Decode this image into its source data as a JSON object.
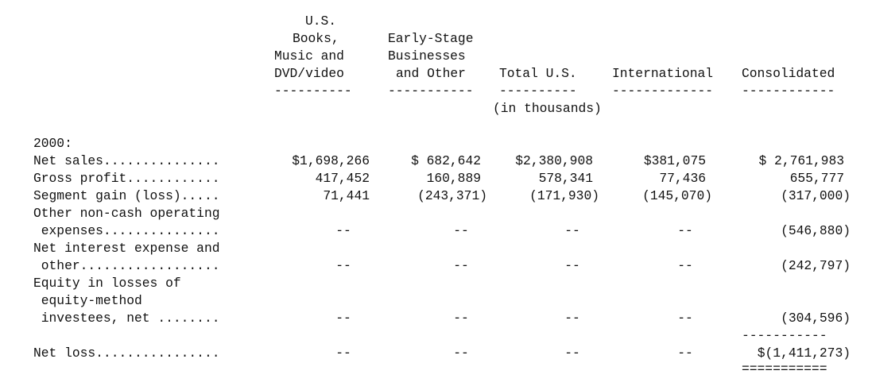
{
  "header": {
    "col1": [
      "U.S.",
      "Books,",
      "Music and",
      "DVD/video"
    ],
    "col2": [
      "Early-Stage",
      "Businesses",
      "and Other"
    ],
    "col3": "Total U.S.",
    "col4": "International",
    "col5": "Consolidated",
    "rule1": "----------",
    "rule2": "-----------",
    "rule3": "----------",
    "rule4": "-------------",
    "rule5": "------------",
    "units": "(in thousands)"
  },
  "year_label": "2000:",
  "rows": [
    {
      "label": [
        "Net sales..............."
      ],
      "values": [
        "$1,698,266",
        "$ 682,642",
        "$2,380,908",
        "$381,075",
        "$ 2,761,983"
      ]
    },
    {
      "label": [
        "Gross profit............"
      ],
      "values": [
        "417,452",
        "160,889",
        "578,341",
        "77,436",
        "655,777"
      ]
    },
    {
      "label": [
        "Segment gain (loss)....."
      ],
      "values": [
        "71,441",
        "(243,371)",
        "(171,930)",
        "(145,070)",
        "(317,000)"
      ]
    },
    {
      "label": [
        "Other non-cash operating",
        " expenses..............."
      ],
      "values": [
        "--",
        "--",
        "--",
        "--",
        "(546,880)"
      ]
    },
    {
      "label": [
        "Net interest expense and",
        " other.................."
      ],
      "values": [
        "--",
        "--",
        "--",
        "--",
        "(242,797)"
      ]
    },
    {
      "label": [
        "Equity in losses of",
        " equity-method",
        " investees, net ........"
      ],
      "values": [
        "--",
        "--",
        "--",
        "--",
        "(304,596)"
      ]
    },
    {
      "label": [
        "Net loss................"
      ],
      "values": [
        "--",
        "--",
        "--",
        "--",
        "$(1,411,273)"
      ]
    }
  ],
  "total_rule_single": "-----------",
  "total_rule_double": "==========="
}
